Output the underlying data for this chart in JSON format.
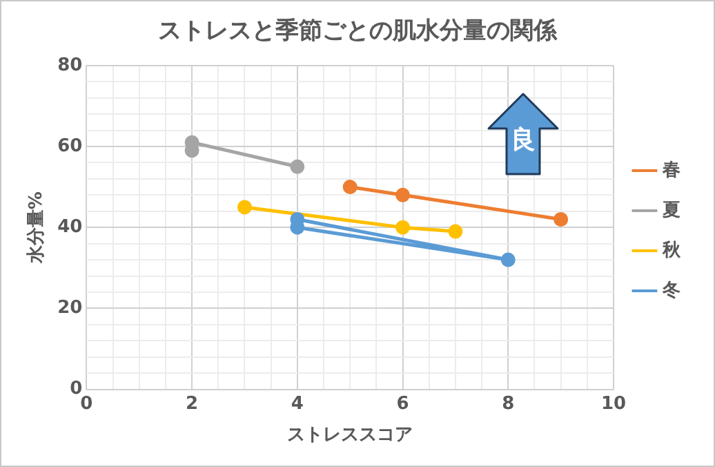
{
  "chart_data": {
    "type": "line",
    "title": "ストレスと季節ごとの肌水分量の関係",
    "xlabel": "ストレススコア",
    "ylabel": "水分量%",
    "annotations": [
      "良"
    ],
    "series": [
      {
        "name": "春",
        "color": "#ed7d31",
        "x": [
          5,
          6,
          9
        ],
        "values": [
          50,
          48,
          42
        ]
      },
      {
        "name": "夏",
        "color": "#a5a5a5",
        "x": [
          2,
          2,
          4
        ],
        "values": [
          59,
          61,
          55
        ]
      },
      {
        "name": "秋",
        "color": "#ffc000",
        "x": [
          3,
          6,
          7
        ],
        "values": [
          45,
          40,
          39
        ]
      },
      {
        "name": "冬",
        "color": "#5b9bd5",
        "x": [
          4,
          8,
          4
        ],
        "values": [
          42,
          32,
          40
        ]
      }
    ],
    "xlim": [
      0,
      10
    ],
    "ylim": [
      0,
      80
    ],
    "xticks": [
      0,
      {
        "value": 0.5,
        "label": null
      },
      {
        "value": 1,
        "label": null
      },
      {
        "value": 1.5,
        "label": null
      },
      2,
      {
        "value": 2.5,
        "label": null
      },
      {
        "value": 3,
        "label": null
      },
      {
        "value": 3.5,
        "label": null
      },
      4,
      {
        "value": 4.5,
        "label": null
      },
      {
        "value": 5,
        "label": null
      },
      {
        "value": 5.5,
        "label": null
      },
      6,
      {
        "value": 6.5,
        "label": null
      },
      {
        "value": 7,
        "label": null
      },
      {
        "value": 7.5,
        "label": null
      },
      8,
      {
        "value": 8.5,
        "label": null
      },
      {
        "value": 9,
        "label": null
      },
      {
        "value": 9.5,
        "label": null
      },
      10
    ],
    "yticks": [
      0,
      {
        "value": 4,
        "label": null
      },
      {
        "value": 8,
        "label": null
      },
      {
        "value": 12,
        "label": null
      },
      {
        "value": 16,
        "label": null
      },
      20,
      {
        "value": 24,
        "label": null
      },
      {
        "value": 28,
        "label": null
      },
      {
        "value": 32,
        "label": null
      },
      {
        "value": 36,
        "label": null
      },
      40,
      {
        "value": 44,
        "label": null
      },
      {
        "value": 48,
        "label": null
      },
      {
        "value": 52,
        "label": null
      },
      {
        "value": 56,
        "label": null
      },
      60,
      {
        "value": 64,
        "label": null
      },
      {
        "value": 68,
        "label": null
      },
      {
        "value": 72,
        "label": null
      },
      {
        "value": 76,
        "label": null
      },
      80
    ],
    "grid": true,
    "legend": "right",
    "marker": "circle",
    "line_style": "solid"
  }
}
